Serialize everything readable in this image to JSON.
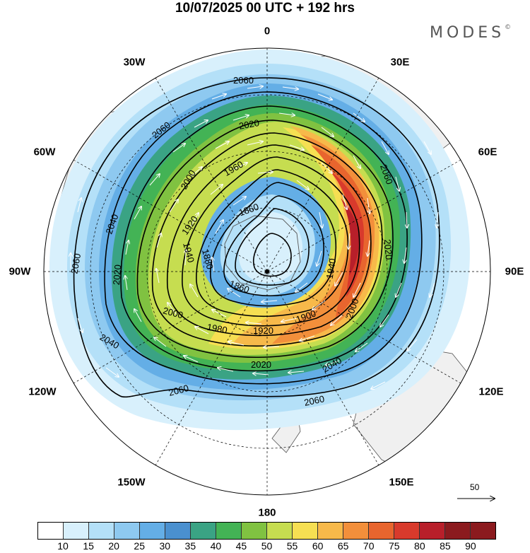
{
  "header": {
    "title": "10/07/2025  00 UTC  + 192 hrs",
    "brand": "MODES",
    "brand_mark": "©"
  },
  "map": {
    "projection": "polar-stereographic-south",
    "lon_labels": {
      "top": "0",
      "bottom": "180",
      "left": "90W",
      "right": "90E",
      "w30": "30W",
      "e30": "30E",
      "w60": "60W",
      "e60": "60E",
      "w120": "120W",
      "e120": "120E",
      "w150": "150W",
      "e150": "150E"
    },
    "contour_labels": [
      "2060",
      "2060",
      "2060",
      "2060",
      "2060",
      "2060",
      "2040",
      "2040",
      "2040",
      "2020",
      "2020",
      "2020",
      "2020",
      "2000",
      "2000",
      "2000",
      "1980",
      "1960",
      "1940",
      "1940",
      "1920",
      "1920",
      "1900",
      "1880",
      "1860",
      "1860"
    ],
    "reference_vector": "50",
    "colors": {
      "land": "#f0f0f0",
      "coast": "#555555",
      "contour": "#000000",
      "grid": "#000000"
    }
  },
  "colorbar": {
    "levels": [
      "10",
      "15",
      "20",
      "25",
      "30",
      "35",
      "40",
      "45",
      "50",
      "55",
      "60",
      "65",
      "70",
      "75",
      "80",
      "85",
      "90"
    ],
    "colors": [
      "#ffffff",
      "#d8f0fc",
      "#b4e0f8",
      "#8ec9f0",
      "#64aee6",
      "#4a90cf",
      "#3aa384",
      "#43b355",
      "#80c241",
      "#c6dd50",
      "#f6df52",
      "#f7b94a",
      "#f28f3b",
      "#e8652e",
      "#d83a2c",
      "#b81f2a",
      "#8b1a1e"
    ]
  }
}
